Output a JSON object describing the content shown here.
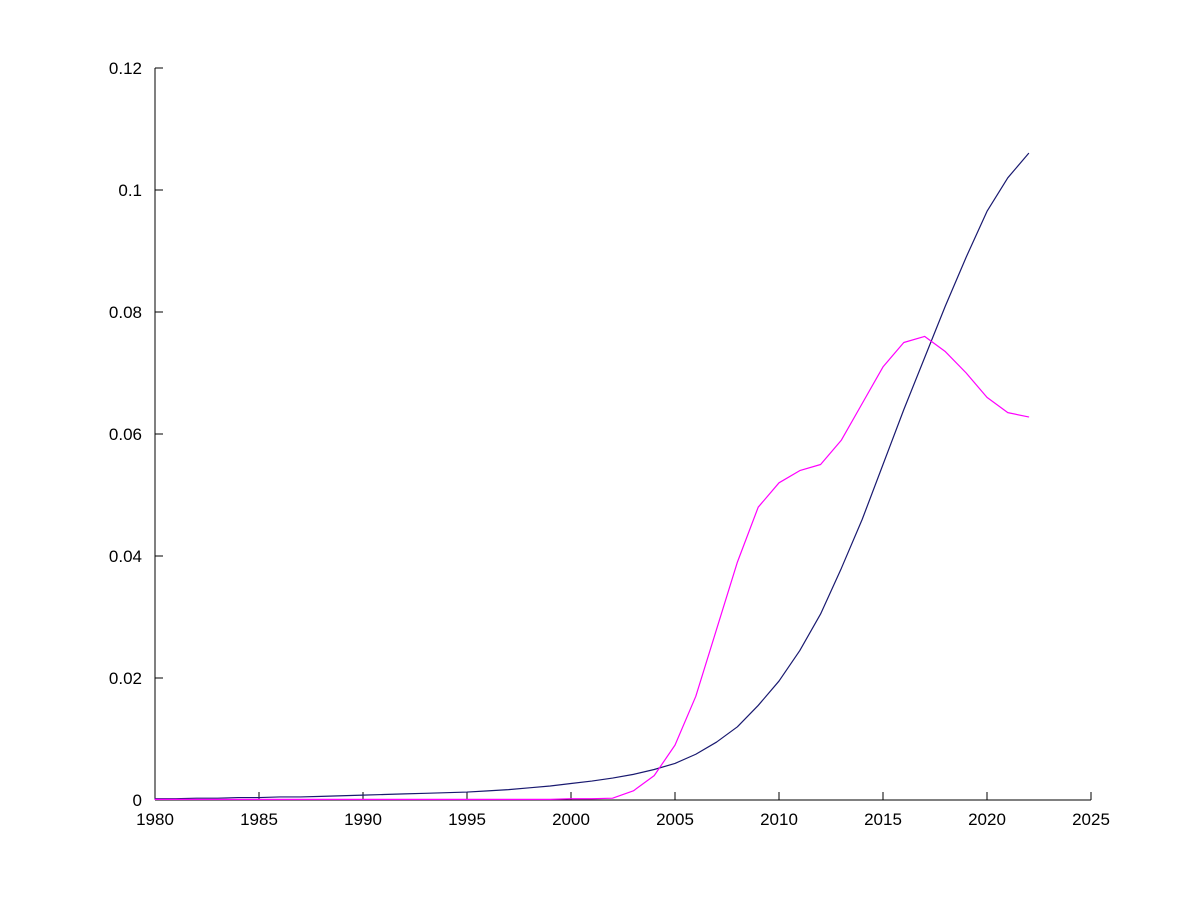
{
  "chart_data": {
    "type": "line",
    "title": "",
    "xlabel": "",
    "ylabel": "",
    "grid": false,
    "legend": null,
    "background_color": "#ffffff",
    "axis_color": "#000000",
    "xlim": [
      1980,
      2025
    ],
    "ylim": [
      0,
      0.12
    ],
    "xtick_values": [
      1980,
      1985,
      1990,
      1995,
      2000,
      2005,
      2010,
      2015,
      2020,
      2025
    ],
    "xtick_labels": [
      "1980",
      "1985",
      "1990",
      "1995",
      "2000",
      "2005",
      "2010",
      "2015",
      "2020",
      "2025"
    ],
    "ytick_values": [
      0,
      0.02,
      0.04,
      0.06,
      0.08,
      0.1,
      0.12
    ],
    "ytick_labels": [
      "0",
      "0.02",
      "0.04",
      "0.06",
      "0.08",
      "0.1",
      "0.12"
    ],
    "x": [
      1980,
      1981,
      1982,
      1983,
      1984,
      1985,
      1986,
      1987,
      1988,
      1989,
      1990,
      1991,
      1992,
      1993,
      1994,
      1995,
      1996,
      1997,
      1998,
      1999,
      2000,
      2001,
      2002,
      2003,
      2004,
      2005,
      2006,
      2007,
      2008,
      2009,
      2010,
      2011,
      2012,
      2013,
      2014,
      2015,
      2016,
      2017,
      2018,
      2019,
      2020,
      2021,
      2022
    ],
    "series": [
      {
        "name": "dark-blue-series",
        "color": "#191970",
        "values": [
          0.0002,
          0.0002,
          0.0003,
          0.0003,
          0.0004,
          0.0004,
          0.0005,
          0.0005,
          0.0006,
          0.0007,
          0.0008,
          0.0009,
          0.001,
          0.0011,
          0.0012,
          0.0013,
          0.0015,
          0.0017,
          0.002,
          0.0023,
          0.0027,
          0.0031,
          0.0036,
          0.0042,
          0.005,
          0.006,
          0.0075,
          0.0095,
          0.012,
          0.0155,
          0.0195,
          0.0245,
          0.0305,
          0.038,
          0.046,
          0.055,
          0.064,
          0.0725,
          0.081,
          0.089,
          0.0965,
          0.102,
          0.106
        ]
      },
      {
        "name": "magenta-series",
        "color": "#ff00ff",
        "values": [
          0.0001,
          0.0001,
          0.0001,
          0.0001,
          0.0001,
          0.0001,
          0.0001,
          0.0001,
          0.0001,
          0.0001,
          0.0001,
          0.0001,
          0.0001,
          0.0001,
          0.0001,
          0.0001,
          0.0001,
          0.0001,
          0.0001,
          0.0001,
          0.0002,
          0.0002,
          0.0003,
          0.0015,
          0.004,
          0.009,
          0.017,
          0.028,
          0.039,
          0.048,
          0.052,
          0.054,
          0.055,
          0.059,
          0.065,
          0.071,
          0.075,
          0.076,
          0.0735,
          0.07,
          0.066,
          0.0635,
          0.0628
        ]
      }
    ]
  }
}
